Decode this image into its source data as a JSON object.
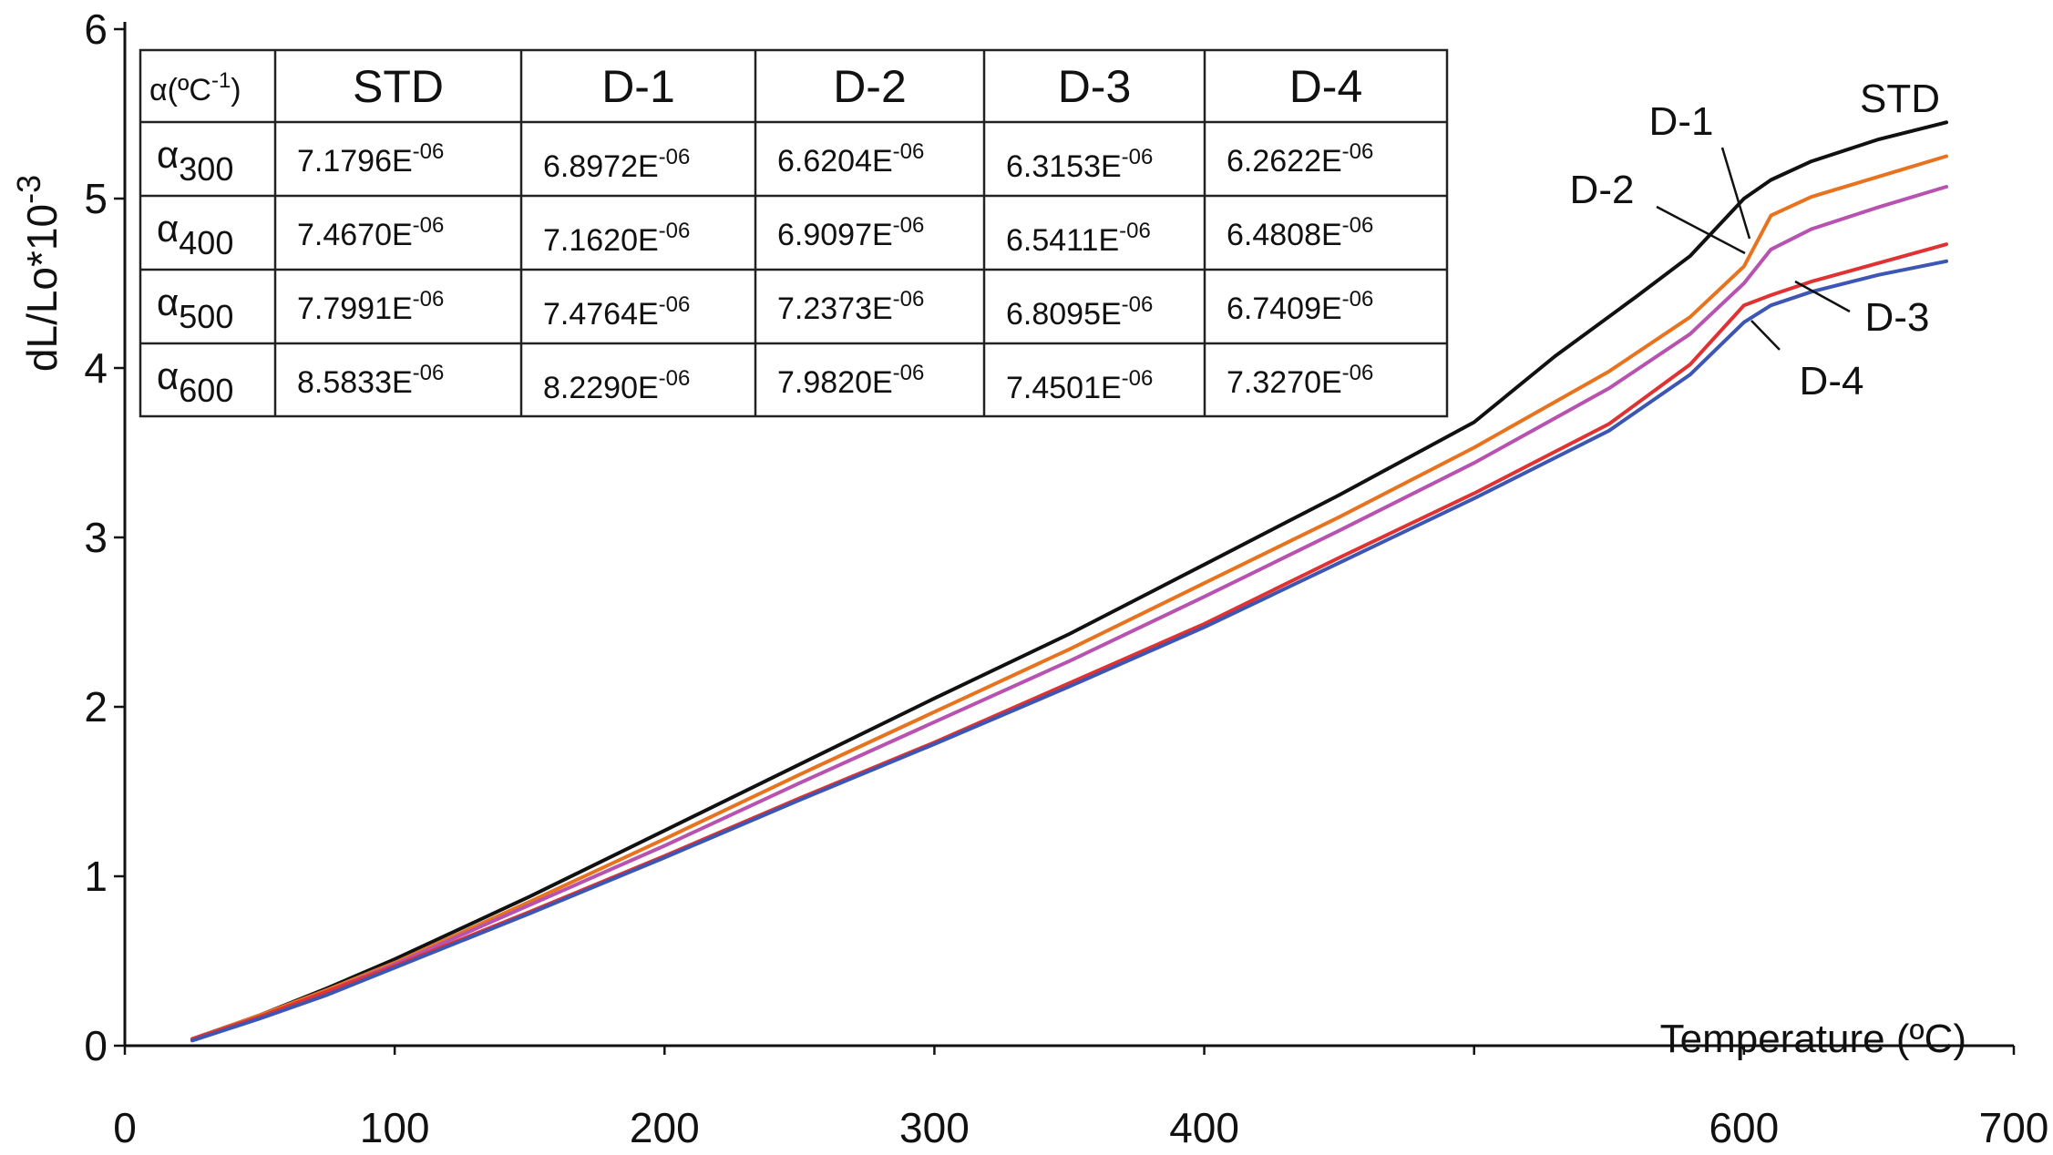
{
  "chart_data": {
    "type": "line",
    "xlabel": "Temperature (ºC)",
    "ylabel": "dL/Lo*10-3",
    "ylabel_parts": {
      "base": "dL/Lo*10",
      "exp": "-3"
    },
    "xlim": [
      0,
      700
    ],
    "ylim": [
      0,
      6
    ],
    "x_ticks": [
      0,
      100,
      200,
      300,
      400,
      500,
      600,
      700
    ],
    "x_tick_labels": [
      "0",
      "100",
      "200",
      "300",
      "400",
      "",
      "600",
      "700"
    ],
    "y_ticks": [
      0,
      1,
      2,
      3,
      4,
      5,
      6
    ],
    "y_tick_labels": [
      "0",
      "1",
      "2",
      "3",
      "4",
      "5",
      "6"
    ],
    "grid": false,
    "legend": "inline labels",
    "series": [
      {
        "name": "STD",
        "color": "#111111",
        "x": [
          25,
          50,
          75,
          100,
          150,
          200,
          250,
          300,
          350,
          400,
          450,
          500,
          530,
          560,
          580,
          600,
          610,
          625,
          650,
          675
        ],
        "y": [
          0.04,
          0.18,
          0.34,
          0.51,
          0.88,
          1.27,
          1.66,
          2.05,
          2.43,
          2.84,
          3.25,
          3.68,
          4.07,
          4.42,
          4.66,
          5.0,
          5.11,
          5.22,
          5.35,
          5.45
        ]
      },
      {
        "name": "D-1",
        "color": "#e8731f",
        "x": [
          25,
          50,
          75,
          100,
          150,
          200,
          250,
          300,
          350,
          400,
          450,
          500,
          550,
          580,
          600,
          610,
          625,
          650,
          675
        ],
        "y": [
          0.04,
          0.18,
          0.33,
          0.49,
          0.85,
          1.22,
          1.6,
          1.97,
          2.34,
          2.73,
          3.12,
          3.53,
          3.98,
          4.3,
          4.6,
          4.9,
          5.01,
          5.13,
          5.25
        ]
      },
      {
        "name": "D-2",
        "color": "#b852b0",
        "x": [
          25,
          50,
          75,
          100,
          150,
          200,
          250,
          300,
          350,
          400,
          450,
          500,
          550,
          580,
          600,
          610,
          625,
          650,
          675
        ],
        "y": [
          0.04,
          0.17,
          0.32,
          0.48,
          0.83,
          1.18,
          1.55,
          1.91,
          2.27,
          2.65,
          3.04,
          3.44,
          3.88,
          4.2,
          4.5,
          4.7,
          4.82,
          4.95,
          5.07
        ]
      },
      {
        "name": "D-3",
        "color": "#e03232",
        "x": [
          25,
          50,
          75,
          100,
          150,
          200,
          250,
          300,
          350,
          400,
          450,
          500,
          550,
          580,
          600,
          610,
          625,
          650,
          675
        ],
        "y": [
          0.04,
          0.17,
          0.32,
          0.47,
          0.79,
          1.12,
          1.46,
          1.79,
          2.14,
          2.49,
          2.88,
          3.26,
          3.67,
          4.02,
          4.37,
          4.43,
          4.51,
          4.62,
          4.73
        ]
      },
      {
        "name": "D-4",
        "color": "#3c56b4",
        "x": [
          25,
          50,
          75,
          100,
          150,
          200,
          250,
          300,
          350,
          400,
          450,
          500,
          550,
          580,
          600,
          610,
          625,
          650,
          675
        ],
        "y": [
          0.03,
          0.16,
          0.3,
          0.46,
          0.78,
          1.11,
          1.45,
          1.78,
          2.12,
          2.47,
          2.85,
          3.23,
          3.63,
          3.96,
          4.27,
          4.37,
          4.45,
          4.55,
          4.63
        ]
      }
    ],
    "annotations": [
      {
        "text": "STD",
        "series": "STD"
      },
      {
        "text": "D-1",
        "series": "D-1"
      },
      {
        "text": "D-2",
        "series": "D-2"
      },
      {
        "text": "D-3",
        "series": "D-3"
      },
      {
        "text": "D-4",
        "series": "D-4"
      }
    ],
    "inset_table": {
      "header_alpha": "α",
      "header_unit": "(ºC",
      "header_exp": "-1",
      "header_close": ")",
      "columns": [
        "STD",
        "D-1",
        "D-2",
        "D-3",
        "D-4"
      ],
      "rows": [
        {
          "symbol": "α",
          "sub": "300",
          "values": [
            "7.1796E",
            "6.8972E",
            "6.6204E",
            "6.3153E",
            "6.2622E"
          ]
        },
        {
          "symbol": "α",
          "sub": "400",
          "values": [
            "7.4670E",
            "7.1620E",
            "6.9097E",
            "6.5411E",
            "6.4808E"
          ]
        },
        {
          "symbol": "α",
          "sub": "500",
          "values": [
            "7.7991E",
            "7.4764E",
            "7.2373E",
            "6.8095E",
            "6.7409E"
          ]
        },
        {
          "symbol": "α",
          "sub": "600",
          "values": [
            "8.5833E",
            "8.2290E",
            "7.9820E",
            "7.4501E",
            "7.3270E"
          ]
        }
      ],
      "exponent": "-06"
    }
  }
}
